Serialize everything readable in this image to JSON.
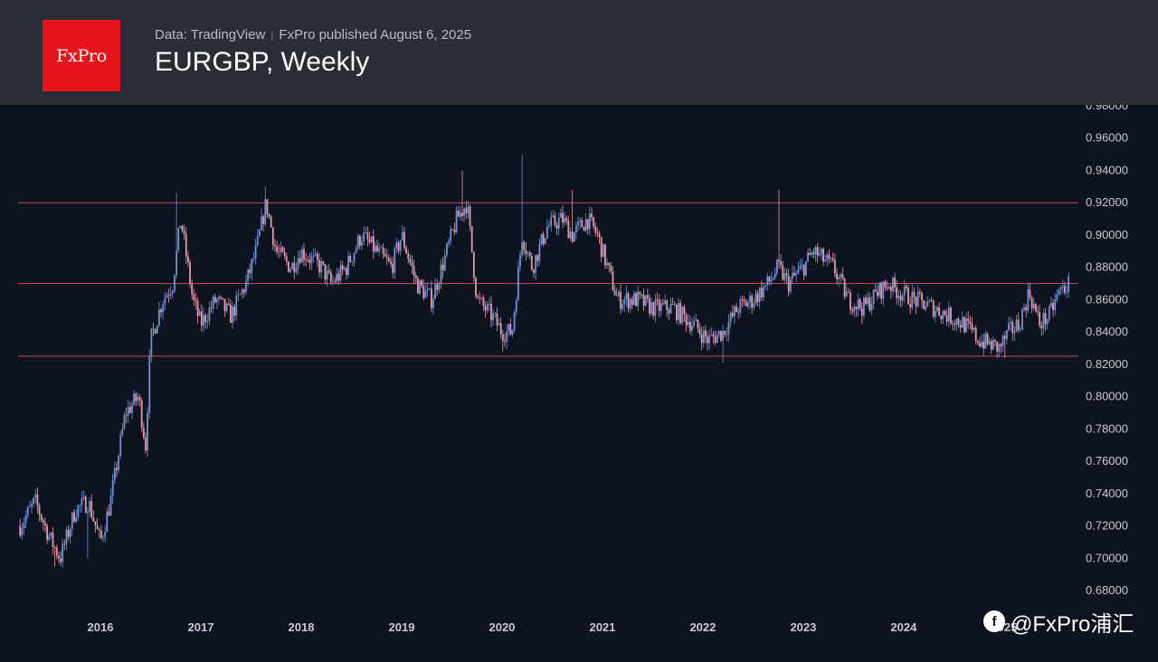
{
  "header": {
    "logo_text": "FxPro",
    "source": "Data: TradingView",
    "publisher": "FxPro published August 6, 2025",
    "title": "EURGBP, Weekly"
  },
  "watermark": {
    "text": "@FxPro浦汇",
    "icon": "social-account-icon"
  },
  "colors": {
    "background": "#0e1320",
    "header": "#2a2d35",
    "logo": "#e8141b",
    "candle_up": "#6f93d6",
    "candle_down": "#e89aa6",
    "level_line": "#c2475f",
    "axis_text": "#c7cad2"
  },
  "chart_data": {
    "type": "candlestick",
    "symbol": "EURGBP",
    "timeframe": "Weekly",
    "x_axis_labels": [
      "2016",
      "2017",
      "2018",
      "2019",
      "2020",
      "2021",
      "2022",
      "2023",
      "2024",
      "2025"
    ],
    "y_axis_labels": [
      "0.98000",
      "0.96000",
      "0.94000",
      "0.92000",
      "0.90000",
      "0.88000",
      "0.86000",
      "0.84000",
      "0.82000",
      "0.80000",
      "0.78000",
      "0.76000",
      "0.74000",
      "0.72000",
      "0.70000",
      "0.68000"
    ],
    "ylim": [
      0.673,
      0.98
    ],
    "xlim": [
      2015.18,
      2025.74
    ],
    "horizontal_levels": [
      0.92,
      0.87,
      0.825
    ],
    "close_path": [
      [
        2015.2,
        0.72
      ],
      [
        2015.35,
        0.735
      ],
      [
        2015.5,
        0.712
      ],
      [
        2015.6,
        0.7
      ],
      [
        2015.75,
        0.73
      ],
      [
        2015.88,
        0.735
      ],
      [
        2016.0,
        0.71
      ],
      [
        2016.1,
        0.735
      ],
      [
        2016.25,
        0.79
      ],
      [
        2016.38,
        0.8
      ],
      [
        2016.45,
        0.77
      ],
      [
        2016.5,
        0.835
      ],
      [
        2016.62,
        0.86
      ],
      [
        2016.72,
        0.87
      ],
      [
        2016.8,
        0.91
      ],
      [
        2016.92,
        0.86
      ],
      [
        2017.0,
        0.845
      ],
      [
        2017.15,
        0.86
      ],
      [
        2017.3,
        0.85
      ],
      [
        2017.45,
        0.87
      ],
      [
        2017.55,
        0.89
      ],
      [
        2017.65,
        0.92
      ],
      [
        2017.75,
        0.89
      ],
      [
        2017.9,
        0.88
      ],
      [
        2018.0,
        0.89
      ],
      [
        2018.2,
        0.88
      ],
      [
        2018.3,
        0.87
      ],
      [
        2018.45,
        0.88
      ],
      [
        2018.6,
        0.9
      ],
      [
        2018.75,
        0.89
      ],
      [
        2018.9,
        0.88
      ],
      [
        2019.0,
        0.9
      ],
      [
        2019.15,
        0.87
      ],
      [
        2019.3,
        0.86
      ],
      [
        2019.45,
        0.89
      ],
      [
        2019.55,
        0.91
      ],
      [
        2019.65,
        0.92
      ],
      [
        2019.75,
        0.86
      ],
      [
        2019.9,
        0.85
      ],
      [
        2020.0,
        0.84
      ],
      [
        2020.1,
        0.84
      ],
      [
        2020.2,
        0.9
      ],
      [
        2020.3,
        0.88
      ],
      [
        2020.45,
        0.905
      ],
      [
        2020.6,
        0.91
      ],
      [
        2020.7,
        0.9
      ],
      [
        2020.85,
        0.91
      ],
      [
        2020.95,
        0.9
      ],
      [
        2021.0,
        0.89
      ],
      [
        2021.15,
        0.86
      ],
      [
        2021.35,
        0.86
      ],
      [
        2021.5,
        0.855
      ],
      [
        2021.7,
        0.855
      ],
      [
        2021.9,
        0.845
      ],
      [
        2022.05,
        0.835
      ],
      [
        2022.2,
        0.84
      ],
      [
        2022.35,
        0.855
      ],
      [
        2022.5,
        0.86
      ],
      [
        2022.65,
        0.87
      ],
      [
        2022.75,
        0.88
      ],
      [
        2022.85,
        0.87
      ],
      [
        2023.0,
        0.88
      ],
      [
        2023.1,
        0.89
      ],
      [
        2023.3,
        0.88
      ],
      [
        2023.45,
        0.86
      ],
      [
        2023.6,
        0.855
      ],
      [
        2023.75,
        0.865
      ],
      [
        2023.85,
        0.87
      ],
      [
        2023.95,
        0.865
      ],
      [
        2024.1,
        0.86
      ],
      [
        2024.3,
        0.855
      ],
      [
        2024.45,
        0.85
      ],
      [
        2024.6,
        0.845
      ],
      [
        2024.75,
        0.835
      ],
      [
        2024.95,
        0.83
      ],
      [
        2025.05,
        0.84
      ],
      [
        2025.15,
        0.845
      ],
      [
        2025.25,
        0.865
      ],
      [
        2025.35,
        0.845
      ],
      [
        2025.45,
        0.85
      ],
      [
        2025.55,
        0.865
      ],
      [
        2025.65,
        0.87
      ]
    ],
    "spikes": [
      [
        2016.75,
        0.926
      ],
      [
        2017.65,
        0.93
      ],
      [
        2019.6,
        0.94
      ],
      [
        2020.2,
        0.95
      ],
      [
        2020.7,
        0.928
      ],
      [
        2022.75,
        0.928
      ],
      [
        2015.55,
        0.695
      ],
      [
        2015.88,
        0.7
      ],
      [
        2020.0,
        0.828
      ],
      [
        2022.2,
        0.821
      ],
      [
        2025.0,
        0.824
      ]
    ]
  }
}
